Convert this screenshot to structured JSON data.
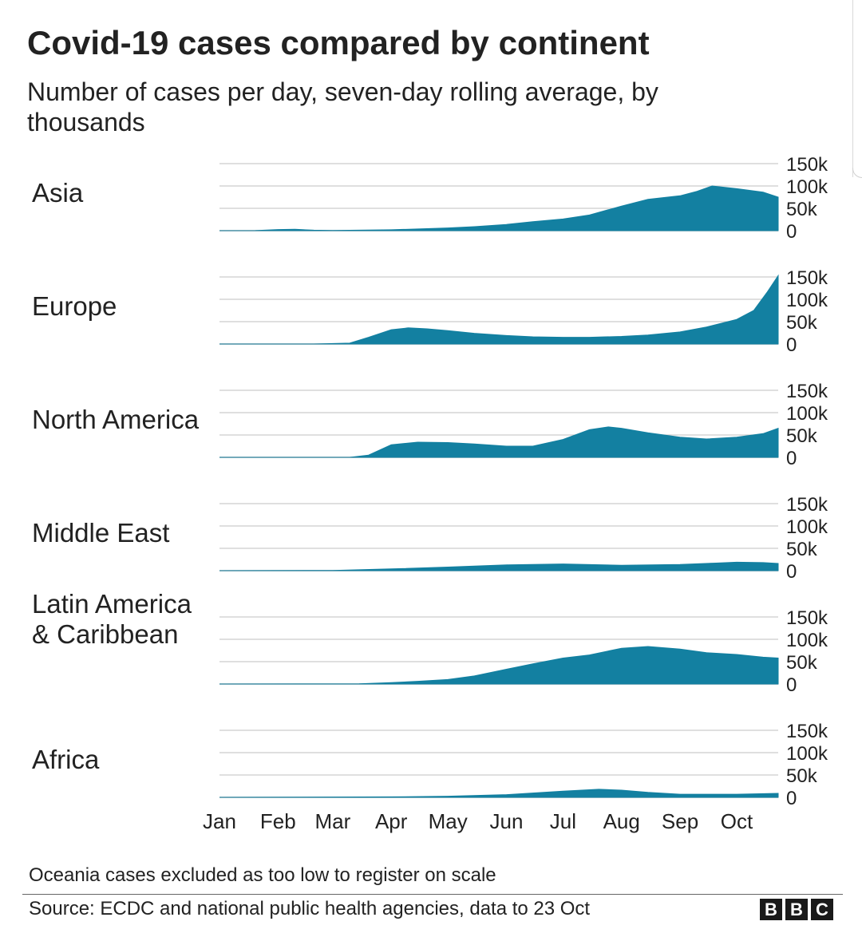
{
  "chart_data": {
    "type": "area",
    "title": "Covid-19 cases compared by continent",
    "subtitle": "Number of cases per day, seven-day rolling average, by thousands",
    "x_ticks": [
      "Jan",
      "Feb",
      "Mar",
      "Apr",
      "May",
      "Jun",
      "Jul",
      "Aug",
      "Sep",
      "Oct"
    ],
    "x_range": [
      "2020-01-01",
      "2020-10-23"
    ],
    "y_ticks": [
      "0",
      "50k",
      "100k",
      "150k"
    ],
    "ylim": [
      0,
      150000
    ],
    "fill_color": "#1380a1",
    "grid_color": "#cccccc",
    "note": "Oceania cases excluded as too low to register on scale",
    "source": "Source: ECDC and national public health agencies, data to 23 Oct",
    "series": [
      {
        "name": "Asia",
        "x": [
          "2020-01-01",
          "2020-01-20",
          "2020-02-01",
          "2020-02-10",
          "2020-02-20",
          "2020-03-01",
          "2020-04-01",
          "2020-05-01",
          "2020-05-15",
          "2020-06-01",
          "2020-06-15",
          "2020-07-01",
          "2020-07-15",
          "2020-08-01",
          "2020-08-15",
          "2020-09-01",
          "2020-09-10",
          "2020-09-18",
          "2020-10-01",
          "2020-10-15",
          "2020-10-23"
        ],
        "values": [
          0,
          100,
          2500,
          3000,
          1000,
          500,
          2000,
          6000,
          9000,
          14000,
          20000,
          26000,
          35000,
          55000,
          70000,
          78000,
          88000,
          100000,
          94000,
          86000,
          75000
        ]
      },
      {
        "name": "Europe",
        "x": [
          "2020-01-01",
          "2020-02-20",
          "2020-03-10",
          "2020-03-20",
          "2020-04-01",
          "2020-04-10",
          "2020-04-20",
          "2020-05-01",
          "2020-05-15",
          "2020-06-01",
          "2020-06-15",
          "2020-07-01",
          "2020-07-15",
          "2020-08-01",
          "2020-08-15",
          "2020-09-01",
          "2020-09-15",
          "2020-10-01",
          "2020-10-10",
          "2020-10-17",
          "2020-10-23"
        ],
        "values": [
          0,
          0,
          2000,
          15000,
          32000,
          36000,
          34000,
          30000,
          24000,
          19000,
          16000,
          15000,
          15000,
          17000,
          20000,
          27000,
          38000,
          55000,
          75000,
          115000,
          170000
        ]
      },
      {
        "name": "North America",
        "x": [
          "2020-01-01",
          "2020-03-10",
          "2020-03-20",
          "2020-04-01",
          "2020-04-15",
          "2020-05-01",
          "2020-05-15",
          "2020-06-01",
          "2020-06-15",
          "2020-07-01",
          "2020-07-15",
          "2020-07-25",
          "2020-08-01",
          "2020-08-15",
          "2020-09-01",
          "2020-09-15",
          "2020-10-01",
          "2020-10-15",
          "2020-10-23"
        ],
        "values": [
          0,
          0,
          5000,
          28000,
          34000,
          33000,
          30000,
          25000,
          25000,
          40000,
          62000,
          68000,
          65000,
          55000,
          45000,
          41000,
          45000,
          53000,
          65000
        ]
      },
      {
        "name": "Middle East",
        "x": [
          "2020-01-01",
          "2020-03-01",
          "2020-04-01",
          "2020-05-01",
          "2020-06-01",
          "2020-07-01",
          "2020-08-01",
          "2020-09-01",
          "2020-09-20",
          "2020-10-01",
          "2020-10-15",
          "2020-10-23"
        ],
        "values": [
          0,
          500,
          4000,
          8000,
          13000,
          15000,
          12000,
          14000,
          17000,
          19000,
          18000,
          16000
        ]
      },
      {
        "name": "Latin America & Caribbean",
        "x": [
          "2020-01-01",
          "2020-03-15",
          "2020-04-01",
          "2020-04-15",
          "2020-05-01",
          "2020-05-15",
          "2020-06-01",
          "2020-06-15",
          "2020-07-01",
          "2020-07-15",
          "2020-08-01",
          "2020-08-15",
          "2020-09-01",
          "2020-09-15",
          "2020-10-01",
          "2020-10-15",
          "2020-10-23"
        ],
        "values": [
          0,
          500,
          3000,
          6000,
          10000,
          18000,
          33000,
          45000,
          58000,
          65000,
          80000,
          84000,
          78000,
          70000,
          66000,
          60000,
          58000
        ]
      },
      {
        "name": "Africa",
        "x": [
          "2020-01-01",
          "2020-04-01",
          "2020-05-01",
          "2020-06-01",
          "2020-07-01",
          "2020-07-20",
          "2020-08-01",
          "2020-08-15",
          "2020-09-01",
          "2020-10-01",
          "2020-10-23"
        ],
        "values": [
          0,
          1000,
          2500,
          6000,
          14000,
          18000,
          16000,
          11000,
          7000,
          7000,
          9000
        ]
      }
    ]
  },
  "logo_letters": [
    "B",
    "B",
    "C"
  ]
}
